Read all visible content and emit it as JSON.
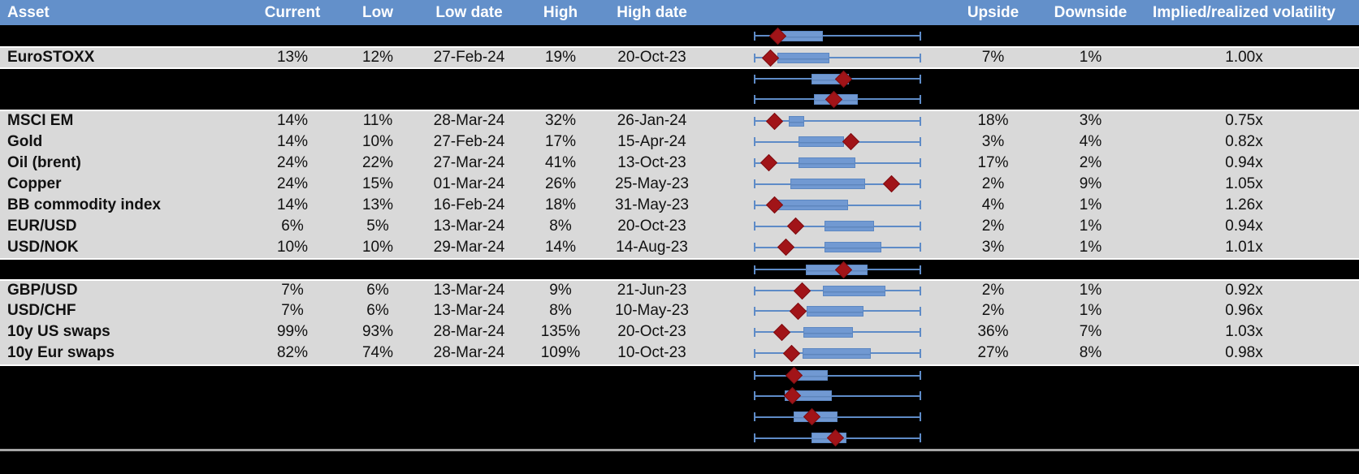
{
  "header": {
    "asset": "Asset",
    "current": "Current",
    "low": "Low",
    "low_date": "Low date",
    "high": "High",
    "high_date": "High date",
    "upside": "Upside",
    "downside": "Downside",
    "implied": "Implied/realized volatility"
  },
  "colors": {
    "header_blue": "#6390CA",
    "row_gray": "#D9D9D9",
    "row_black": "#000000",
    "whisker_blue": "#5E8BC7",
    "box_fill_blue": "#7199D2",
    "box_border_blue": "#5C87C2",
    "diamond_red": "#A11418",
    "footer_line_gray": "#A6A6A6",
    "header_text": "#FFFFFF",
    "body_text": "#111111"
  },
  "chart_data": {
    "type": "table",
    "description": "Implied volatility table: current level vs 1-year low/high with dates, upside/downside and implied/realized ratio; each row has a normalized box-whisker plot (whiskers = low-high span, red diamond = current level, positions are fractions 0-1 of the whisker span).",
    "columns": [
      "Asset",
      "Current",
      "Low",
      "Low date",
      "High",
      "High date",
      "Range boxplot",
      "Upside",
      "Downside",
      "Implied/realized volatility"
    ],
    "boxplot_axis": {
      "min_fraction": 0,
      "max_fraction": 1,
      "grid": "off",
      "legend": "none"
    },
    "display_rows": [
      {
        "type": "spacer",
        "asset": "",
        "current": "",
        "low": "",
        "low_date": "",
        "high": "",
        "high_date": "",
        "upside": "",
        "downside": "",
        "implied_realized": "",
        "box": [
          0.146,
          0.414
        ],
        "diamond": 0.141
      },
      {
        "type": "data",
        "asset": "EuroSTOXX",
        "current": "13%",
        "low": "12%",
        "low_date": "27-Feb-24",
        "high": "19%",
        "high_date": "20-Oct-23",
        "upside": "7%",
        "downside": "1%",
        "implied_realized": "1.00x",
        "box": [
          0.142,
          0.45
        ],
        "diamond": 0.098
      },
      {
        "type": "spacer",
        "asset": "",
        "current": "",
        "low": "",
        "low_date": "",
        "high": "",
        "high_date": "",
        "upside": "",
        "downside": "",
        "implied_realized": "",
        "box": [
          0.347,
          0.566
        ],
        "diamond": 0.535
      },
      {
        "type": "spacer",
        "asset": "",
        "current": "",
        "low": "",
        "low_date": "",
        "high": "",
        "high_date": "",
        "upside": "",
        "downside": "",
        "implied_realized": "",
        "box": [
          0.36,
          0.62
        ],
        "diamond": 0.478
      },
      {
        "type": "data",
        "asset": "MSCI EM",
        "current": "14%",
        "low": "11%",
        "low_date": "28-Mar-24",
        "high": "32%",
        "high_date": "26-Jan-24",
        "upside": "18%",
        "downside": "3%",
        "implied_realized": "0.75x",
        "box": [
          0.21,
          0.3
        ],
        "diamond": 0.122
      },
      {
        "type": "data",
        "asset": "Gold",
        "current": "14%",
        "low": "10%",
        "low_date": "27-Feb-24",
        "high": "17%",
        "high_date": "15-Apr-24",
        "upside": "3%",
        "downside": "4%",
        "implied_realized": "0.82x",
        "box": [
          0.268,
          0.541
        ],
        "diamond": 0.58
      },
      {
        "type": "data",
        "asset": "Oil (brent)",
        "current": "24%",
        "low": "22%",
        "low_date": "27-Mar-24",
        "high": "41%",
        "high_date": "13-Oct-23",
        "upside": "17%",
        "downside": "2%",
        "implied_realized": "0.94x",
        "box": [
          0.268,
          0.605
        ],
        "diamond": 0.088
      },
      {
        "type": "data",
        "asset": "Copper",
        "current": "24%",
        "low": "15%",
        "low_date": "01-Mar-24",
        "high": "26%",
        "high_date": "25-May-23",
        "upside": "2%",
        "downside": "9%",
        "implied_realized": "1.05x",
        "box": [
          0.22,
          0.663
        ],
        "diamond": 0.824
      },
      {
        "type": "data",
        "asset": "BB commodity index",
        "current": "14%",
        "low": "13%",
        "low_date": "16-Feb-24",
        "high": "18%",
        "high_date": "31-May-23",
        "upside": "4%",
        "downside": "1%",
        "implied_realized": "1.26x",
        "box": [
          0.132,
          0.561
        ],
        "diamond": 0.122
      },
      {
        "type": "data",
        "asset": "EUR/USD",
        "current": "6%",
        "low": "5%",
        "low_date": "13-Mar-24",
        "high": "8%",
        "high_date": "20-Oct-23",
        "upside": "2%",
        "downside": "1%",
        "implied_realized": "0.94x",
        "box": [
          0.42,
          0.717
        ],
        "diamond": 0.248
      },
      {
        "type": "data",
        "asset": "USD/NOK",
        "current": "10%",
        "low": "10%",
        "low_date": "29-Mar-24",
        "high": "14%",
        "high_date": "14-Aug-23",
        "upside": "3%",
        "downside": "1%",
        "implied_realized": "1.01x",
        "box": [
          0.42,
          0.76
        ],
        "diamond": 0.19
      },
      {
        "type": "spacer",
        "asset": "",
        "current": "",
        "low": "",
        "low_date": "",
        "high": "",
        "high_date": "",
        "upside": "",
        "downside": "",
        "implied_realized": "",
        "box": [
          0.312,
          0.682
        ],
        "diamond": 0.535
      },
      {
        "type": "data",
        "asset": "GBP/USD",
        "current": "7%",
        "low": "6%",
        "low_date": "13-Mar-24",
        "high": "9%",
        "high_date": "21-Jun-23",
        "upside": "2%",
        "downside": "1%",
        "implied_realized": "0.92x",
        "box": [
          0.415,
          0.786
        ],
        "diamond": 0.287
      },
      {
        "type": "data",
        "asset": "USD/CHF",
        "current": "7%",
        "low": "6%",
        "low_date": "13-Mar-24",
        "high": "8%",
        "high_date": "10-May-23",
        "upside": "2%",
        "downside": "1%",
        "implied_realized": "0.96x",
        "box": [
          0.315,
          0.653
        ],
        "diamond": 0.263
      },
      {
        "type": "data",
        "asset": "10y US swaps",
        "current": "99%",
        "low": "93%",
        "low_date": "28-Mar-24",
        "high": "135%",
        "high_date": "20-Oct-23",
        "upside": "36%",
        "downside": "7%",
        "implied_realized": "1.03x",
        "box": [
          0.295,
          0.59
        ],
        "diamond": 0.166
      },
      {
        "type": "data",
        "asset": "10y Eur swaps",
        "current": "82%",
        "low": "74%",
        "low_date": "28-Mar-24",
        "high": "109%",
        "high_date": "10-Oct-23",
        "upside": "27%",
        "downside": "8%",
        "implied_realized": "0.98x",
        "box": [
          0.29,
          0.7
        ],
        "diamond": 0.225
      },
      {
        "type": "spacer",
        "asset": "",
        "current": "",
        "low": "",
        "low_date": "",
        "high": "",
        "high_date": "",
        "upside": "",
        "downside": "",
        "implied_realized": "",
        "box": [
          0.22,
          0.44
        ],
        "diamond": 0.24
      },
      {
        "type": "spacer",
        "asset": "",
        "current": "",
        "low": "",
        "low_date": "",
        "high": "",
        "high_date": "",
        "upside": "",
        "downside": "",
        "implied_realized": "",
        "box": [
          0.185,
          0.465
        ],
        "diamond": 0.23
      },
      {
        "type": "spacer",
        "asset": "",
        "current": "",
        "low": "",
        "low_date": "",
        "high": "",
        "high_date": "",
        "upside": "",
        "downside": "",
        "implied_realized": "",
        "box": [
          0.24,
          0.5
        ],
        "diamond": 0.345
      },
      {
        "type": "spacer",
        "asset": "",
        "current": "",
        "low": "",
        "low_date": "",
        "high": "",
        "high_date": "",
        "upside": "",
        "downside": "",
        "implied_realized": "",
        "box": [
          0.347,
          0.555
        ],
        "diamond": 0.49
      }
    ]
  }
}
